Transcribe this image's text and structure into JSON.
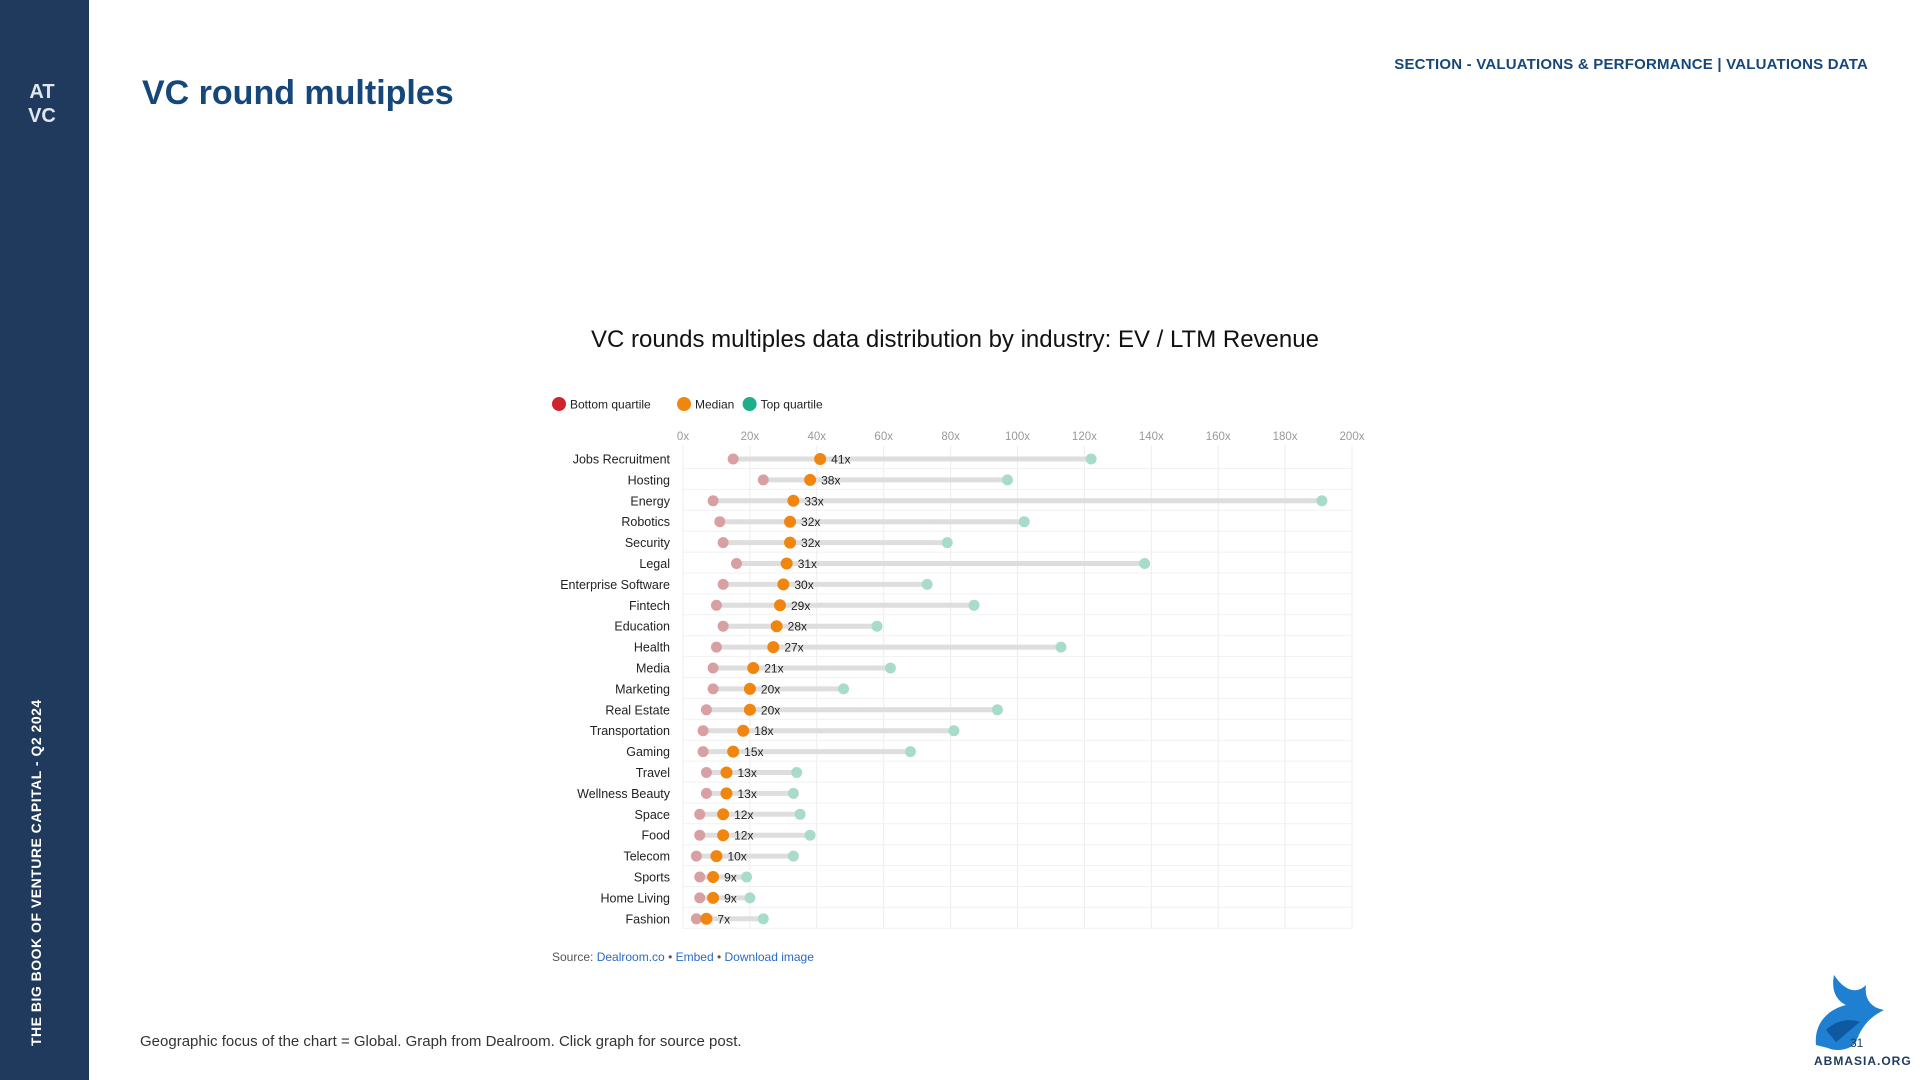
{
  "sidebar": {
    "logo_text_top": "AT",
    "logo_text_bottom": "VC",
    "vertical_text": "THE BIG BOOK OF VENTURE CAPITAL - Q2 2024"
  },
  "header": {
    "title": "VC round multiples",
    "section": "SECTION - VALUATIONS & PERFORMANCE | VALUATIONS DATA"
  },
  "source": {
    "prefix": "Source: ",
    "link1": "Dealroom.co",
    "sep1": " • ",
    "link2": "Embed",
    "sep2": " • ",
    "link3": "Download image"
  },
  "footnote": "Geographic focus of the chart = Global. Graph from Dealroom. Click graph for source post.",
  "watermark": "ABMASIA.ORG",
  "page_number": "31",
  "colors": {
    "bottom": "#d9a0a4",
    "median": "#f0860f",
    "top": "#a8dcc8",
    "bar": "#dedede",
    "sidebar": "#1f3a5c"
  },
  "chart_data": {
    "type": "dumbbell",
    "title": "VC rounds multiples data distribution by industry: EV / LTM Revenue",
    "legend": [
      "Bottom quartile",
      "Median",
      "Top quartile"
    ],
    "legend_colors": [
      "#d0242c",
      "#f0860f",
      "#1fae8c"
    ],
    "legend_position": "top-left",
    "xlim": [
      0,
      200
    ],
    "x_ticks": [
      "0x",
      "20x",
      "40x",
      "60x",
      "80x",
      "100x",
      "120x",
      "140x",
      "160x",
      "180x",
      "200x"
    ],
    "grid": true,
    "categories": [
      "Jobs Recruitment",
      "Hosting",
      "Energy",
      "Robotics",
      "Security",
      "Legal",
      "Enterprise Software",
      "Fintech",
      "Education",
      "Health",
      "Media",
      "Marketing",
      "Real Estate",
      "Transportation",
      "Gaming",
      "Travel",
      "Wellness Beauty",
      "Space",
      "Food",
      "Telecom",
      "Sports",
      "Home Living",
      "Fashion"
    ],
    "series": [
      {
        "name": "Bottom quartile",
        "values": [
          15,
          24,
          9,
          11,
          12,
          16,
          12,
          10,
          12,
          10,
          9,
          9,
          7,
          6,
          6,
          7,
          7,
          5,
          5,
          4,
          5,
          5,
          4
        ]
      },
      {
        "name": "Median",
        "values": [
          41,
          38,
          33,
          32,
          32,
          31,
          30,
          29,
          28,
          27,
          21,
          20,
          20,
          18,
          15,
          13,
          13,
          12,
          12,
          10,
          9,
          9,
          7
        ]
      },
      {
        "name": "Top quartile",
        "values": [
          122,
          97,
          191,
          102,
          79,
          138,
          73,
          87,
          58,
          113,
          62,
          48,
          94,
          81,
          68,
          34,
          33,
          35,
          38,
          33,
          19,
          20,
          24
        ]
      }
    ],
    "median_labels": [
      "41x",
      "38x",
      "33x",
      "32x",
      "32x",
      "31x",
      "30x",
      "29x",
      "28x",
      "27x",
      "21x",
      "20x",
      "20x",
      "18x",
      "15x",
      "13x",
      "13x",
      "12x",
      "12x",
      "10x",
      "9x",
      "9x",
      "7x"
    ]
  }
}
